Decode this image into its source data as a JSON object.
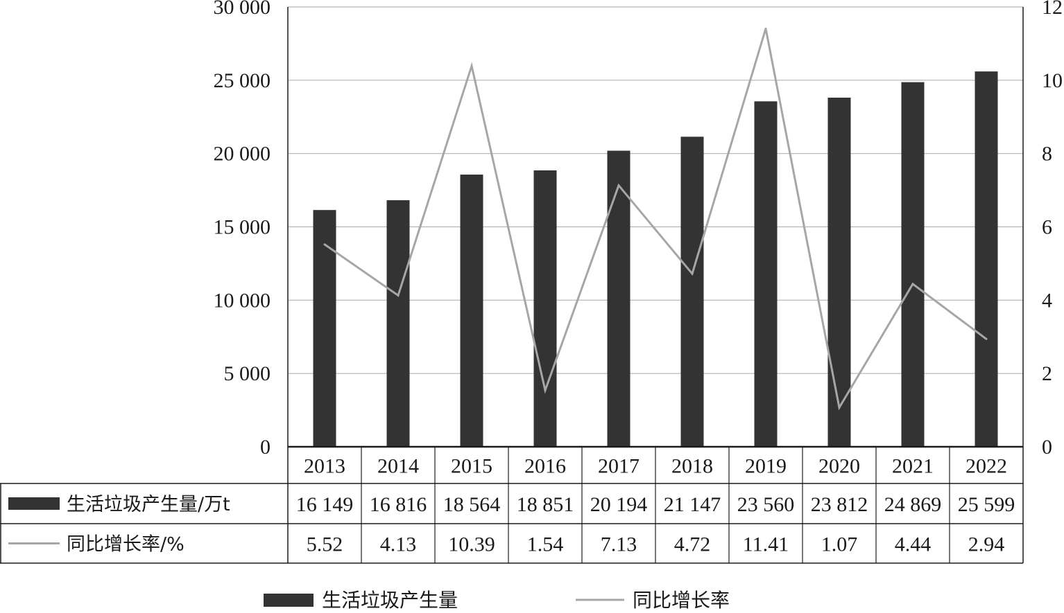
{
  "chart_data": {
    "type": "bar",
    "categories": [
      "2013",
      "2014",
      "2015",
      "2016",
      "2017",
      "2018",
      "2019",
      "2020",
      "2021",
      "2022"
    ],
    "series": [
      {
        "name": "生活垃圾产生量",
        "table_label": "生活垃圾产生量/万t",
        "type": "bar",
        "axis": "left",
        "color": "#333333",
        "values": [
          16149,
          16816,
          18564,
          18851,
          20194,
          21147,
          23560,
          23812,
          24869,
          25599
        ],
        "display": [
          "16 149",
          "16 816",
          "18 564",
          "18 851",
          "20 194",
          "21 147",
          "23 560",
          "23 812",
          "24 869",
          "25 599"
        ]
      },
      {
        "name": "同比增长率",
        "table_label": "同比增长率/%",
        "type": "line",
        "axis": "right",
        "color": "#a6a6a6",
        "values": [
          5.52,
          4.13,
          10.39,
          1.54,
          7.13,
          4.72,
          11.41,
          1.07,
          4.44,
          2.94
        ],
        "display": [
          "5.52",
          "4.13",
          "10.39",
          "1.54",
          "7.13",
          "4.72",
          "11.41",
          "1.07",
          "4.44",
          "2.94"
        ]
      }
    ],
    "y_left": {
      "ylim": [
        0,
        30000
      ],
      "ticks": [
        0,
        5000,
        10000,
        15000,
        20000,
        25000,
        30000
      ],
      "tick_labels": [
        "0",
        "5 000",
        "10 000",
        "15 000",
        "20 000",
        "25 000",
        "30 000"
      ]
    },
    "y_right": {
      "ylim": [
        0,
        12
      ],
      "ticks": [
        0,
        2,
        4,
        6,
        8,
        10,
        12
      ],
      "tick_labels": [
        "0",
        "2",
        "4",
        "6",
        "8",
        "10",
        "12"
      ]
    },
    "grid": true,
    "data_table": true,
    "legend_position": "bottom-center"
  }
}
